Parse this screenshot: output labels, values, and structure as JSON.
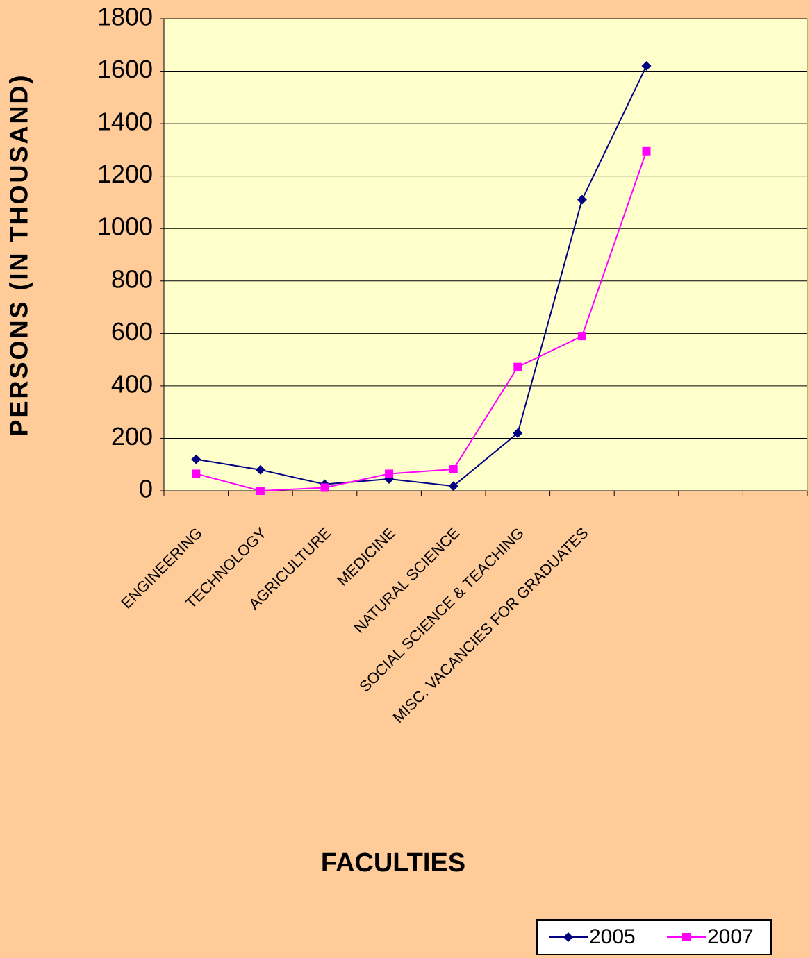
{
  "chart_data": {
    "type": "line",
    "x_label": "FACULTIES",
    "y_label": "PERSONS (IN THOUSAND)",
    "categories": [
      "ENGINEERING",
      "TECHNOLOGY",
      "AGRICULTURE",
      "MEDICINE",
      "NATURAL SCIENCE",
      "SOCIAL SCIENCE & TEACHING",
      "MISC. VACANCIES FOR GRADUATES",
      null,
      null,
      null
    ],
    "series": [
      {
        "name": "2005",
        "color": "#000080",
        "marker": "diamond",
        "values": [
          120,
          80,
          25,
          45,
          18,
          220,
          1110,
          1620,
          null,
          null
        ]
      },
      {
        "name": "2007",
        "color": "#ff00ff",
        "marker": "square",
        "values": [
          65,
          0,
          12,
          65,
          82,
          472,
          590,
          1295,
          null,
          null
        ]
      }
    ],
    "ylim": [
      0,
      1800
    ],
    "yticks": [
      0,
      200,
      400,
      600,
      800,
      1000,
      1200,
      1400,
      1600,
      1800
    ],
    "grid": true,
    "plot_background": "#ffffcc",
    "legend": "bottom-right"
  }
}
